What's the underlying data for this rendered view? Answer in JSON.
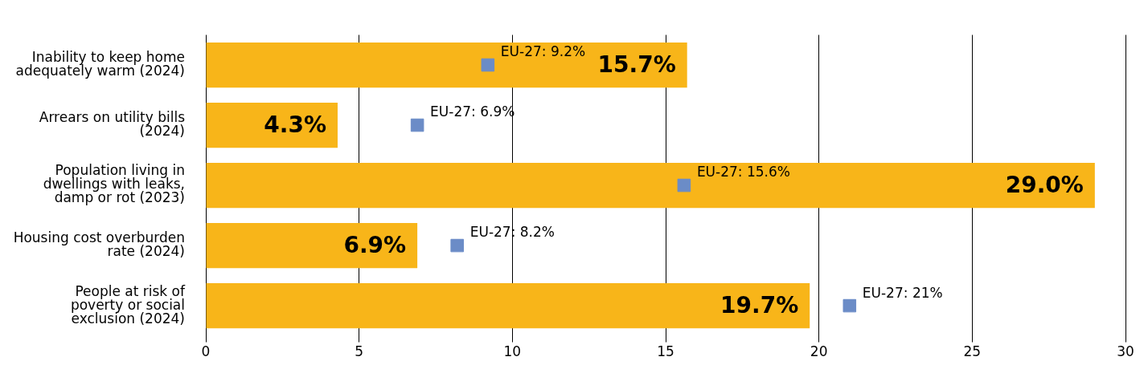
{
  "chart_data": {
    "type": "bar",
    "orientation": "horizontal",
    "categories": [
      "Inability to keep home adequately warm (2024)",
      "Arrears on utility bills (2024)",
      "Population living in dwellings with leaks, damp or rot (2023)",
      "Housing cost overburden rate (2024)",
      "People at risk of poverty or social exclusion (2024)"
    ],
    "series": [
      {
        "color": "#f8b519",
        "values": [
          15.7,
          4.3,
          29.0,
          6.9,
          19.7
        ],
        "value_labels": [
          "15.7%",
          "4.3%",
          "29.0%",
          "6.9%",
          "19.7%"
        ]
      },
      {
        "type": "scatter",
        "color": "#6b8cc7",
        "marker": "square",
        "values": [
          9.2,
          6.9,
          15.6,
          8.2,
          21
        ],
        "value_labels": [
          "EU-27: 9.2%",
          "EU-27: 6.9%",
          "EU-27: 15.6%",
          "EU-27: 8.2%",
          "EU-27: 21%"
        ]
      }
    ],
    "xlim": [
      0,
      30
    ],
    "xticks": [
      0,
      5,
      10,
      15,
      20,
      25,
      30
    ],
    "grid": "x",
    "legend": false
  }
}
